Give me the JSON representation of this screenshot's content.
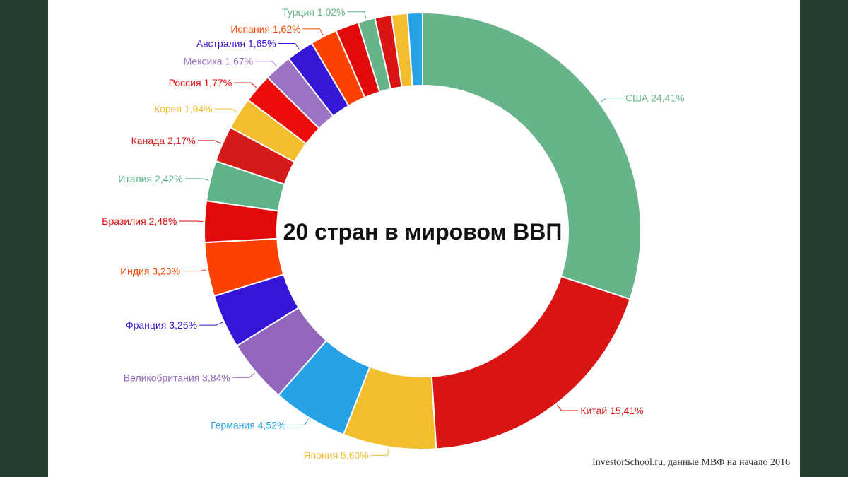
{
  "source_note": "InvestorSchool.ru, данные МВФ на начало 2016",
  "chart_data": {
    "type": "pie",
    "donut": true,
    "title": "20 стран в мировом ВВП",
    "slices": [
      {
        "label": "США 24,41%",
        "value": 24.41,
        "color": "#67b38a"
      },
      {
        "label": "Китай 15,41%",
        "value": 15.41,
        "color": "#d91414"
      },
      {
        "label": "Япония 5,60%",
        "value": 5.6,
        "color": "#f2be2f"
      },
      {
        "label": "Германия 4,52%",
        "value": 4.52,
        "color": "#25a3e6"
      },
      {
        "label": "Великобритания 3,84%",
        "value": 3.84,
        "color": "#9166bb"
      },
      {
        "label": "Франция 3,25%",
        "value": 3.25,
        "color": "#3417d6"
      },
      {
        "label": "Индия 3,23%",
        "value": 3.23,
        "color": "#fb4203"
      },
      {
        "label": "Бразилия 2,48%",
        "value": 2.48,
        "color": "#e10a0a"
      },
      {
        "label": "Италия 2,42%",
        "value": 2.42,
        "color": "#5fb389"
      },
      {
        "label": "Канада 2,17%",
        "value": 2.17,
        "color": "#d51a1a"
      },
      {
        "label": "Корея 1,94%",
        "value": 1.94,
        "color": "#f2be2f"
      },
      {
        "label": "Россия 1,77%",
        "value": 1.77,
        "color": "#ee0d0d"
      },
      {
        "label": "Мексика 1,67%",
        "value": 1.67,
        "color": "#9c72c2"
      },
      {
        "label": "Австралия 1,65%",
        "value": 1.65,
        "color": "#3517d6"
      },
      {
        "label": "Испания 1,62%",
        "value": 1.62,
        "color": "#fb4203"
      },
      {
        "label": "",
        "value": 1.4,
        "color": "#e10a0a"
      },
      {
        "label": "Турция 1,02%",
        "value": 1.02,
        "color": "#67b38a"
      },
      {
        "label": "",
        "value": 1.0,
        "color": "#d91414"
      },
      {
        "label": "",
        "value": 0.95,
        "color": "#f2be2f"
      },
      {
        "label": "",
        "value": 0.9,
        "color": "#25a3e6"
      }
    ]
  }
}
